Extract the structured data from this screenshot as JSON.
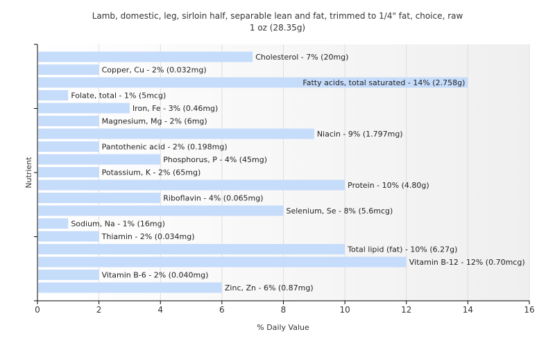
{
  "chart_data": {
    "type": "bar",
    "orientation": "horizontal",
    "title": "Lamb, domestic, leg, sirloin half, separable lean and fat, trimmed to 1/4\" fat, choice, raw",
    "subtitle": "1 oz (28.35g)",
    "xlabel": "% Daily Value",
    "ylabel": "Nutrient",
    "xlim": [
      0,
      16
    ],
    "xticks": [
      "0",
      "2",
      "4",
      "6",
      "8",
      "10",
      "12",
      "14",
      "16"
    ],
    "grid": true,
    "categories": [
      "Cholesterol",
      "Copper, Cu",
      "Fatty acids, total saturated",
      "Folate, total",
      "Iron, Fe",
      "Magnesium, Mg",
      "Niacin",
      "Pantothenic acid",
      "Phosphorus, P",
      "Potassium, K",
      "Protein",
      "Riboflavin",
      "Selenium, Se",
      "Sodium, Na",
      "Thiamin",
      "Total lipid (fat)",
      "Vitamin B-12",
      "Vitamin B-6",
      "Zinc, Zn"
    ],
    "values": [
      7,
      2,
      14,
      1,
      3,
      2,
      9,
      2,
      4,
      2,
      10,
      4,
      8,
      1,
      2,
      10,
      12,
      2,
      6
    ],
    "labels": [
      "Cholesterol - 7% (20mg)",
      "Copper, Cu - 2% (0.032mg)",
      "Fatty acids, total saturated - 14% (2.758g)",
      "Folate, total - 1% (5mcg)",
      "Iron, Fe - 3% (0.46mg)",
      "Magnesium, Mg - 2% (6mg)",
      "Niacin - 9% (1.797mg)",
      "Pantothenic acid - 2% (0.198mg)",
      "Phosphorus, P - 4% (45mg)",
      "Potassium, K - 2% (65mg)",
      "Protein - 10% (4.80g)",
      "Riboflavin - 4% (0.065mg)",
      "Selenium, Se - 8% (5.6mcg)",
      "Sodium, Na - 1% (16mg)",
      "Thiamin - 2% (0.034mg)",
      "Total lipid (fat) - 10% (6.27g)",
      "Vitamin B-12 - 12% (0.70mcg)",
      "Vitamin B-6 - 2% (0.040mg)",
      "Zinc, Zn - 6% (0.87mg)"
    ],
    "bar_color": "#c6dcfb"
  }
}
